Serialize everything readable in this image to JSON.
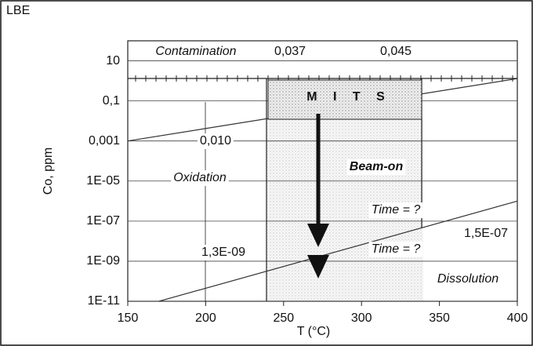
{
  "chart_data": {
    "type": "line",
    "title": "LBE",
    "ylabel": "Co, ppm",
    "xlabel": "T (°C)",
    "log_y": true,
    "xlim": [
      150,
      400
    ],
    "xticks": [
      150,
      200,
      250,
      300,
      350,
      400
    ],
    "ylim": [
      1e-11,
      100
    ],
    "yticks": [
      {
        "value": 1e-11,
        "label": "1E-11"
      },
      {
        "value": 1e-09,
        "label": "1E-09"
      },
      {
        "value": 1e-07,
        "label": "1E-07"
      },
      {
        "value": 1e-05,
        "label": "1E-05"
      },
      {
        "value": 0.001,
        "label": "0,001"
      },
      {
        "value": 0.1,
        "label": "0,1"
      },
      10
    ],
    "grid": true,
    "series": [
      {
        "x": [
          150,
          400
        ],
        "values": [
          0.001,
          1.3
        ],
        "color": "#333"
      },
      {
        "x": [
          170,
          400
        ],
        "values": [
          1e-11,
          1e-06
        ],
        "color": "#333"
      }
    ],
    "box_label": "M I T S",
    "annotations": [
      "Contamination",
      "0,037",
      "0,045",
      "0,010",
      "Oxidation",
      "Beam-on",
      "Time = ?",
      "Time = ?",
      "1,3E-09",
      "1,5E-07",
      "Dissolution"
    ]
  }
}
